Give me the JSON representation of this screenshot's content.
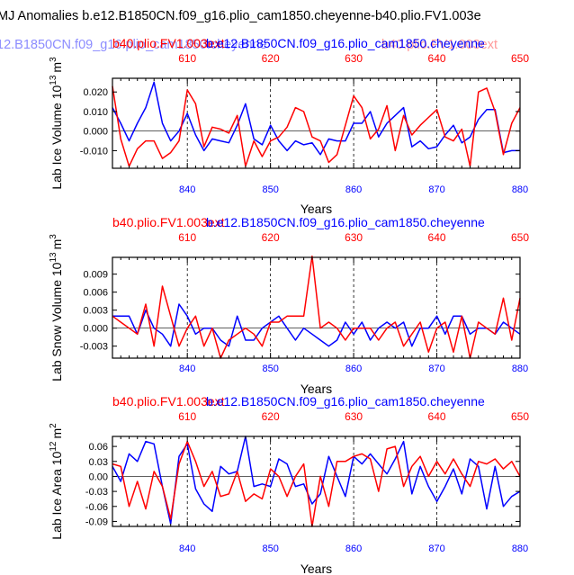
{
  "figure": {
    "title": "MJ Anomalies b.e12.B1850CN.f09_g16.plio_cam1850.cheyenne-b40.plio.FV1.003e",
    "overlay_blue": "12.B1850CN.f09_g16.plio_cam1850.cheyenne",
    "overlay_red": "b40.plio.FV1.003ext"
  },
  "colors": {
    "blue": "#0000ff",
    "red": "#ff0000",
    "black": "#000000",
    "faded_blue": "#8c8cff",
    "faded_red": "#ff9a9a"
  },
  "chart_data": [
    {
      "type": "line",
      "name": "lab-ice-volume",
      "title_red": "b40.plio.FV1.003ext",
      "title_blue": "b.e12.B1850CN.f09_g16.plio_cam1850.cheyenne",
      "ylabel": "Lab Ice Volume 10",
      "ylabel_exp": "13",
      "ylabel_unit": "m",
      "ylabel_unit_exp": "3",
      "xlabel": "Years",
      "xlim": [
        831,
        880
      ],
      "top_xlim": [
        601,
        650
      ],
      "ylim": [
        -0.019,
        0.027
      ],
      "yticks": [
        -0.01,
        0.0,
        0.01,
        0.02
      ],
      "ytick_labels": [
        "-0.010",
        "0.000",
        "0.010",
        "0.020"
      ],
      "xticks": [
        840,
        850,
        860,
        870,
        880
      ],
      "top_xticks": [
        610,
        620,
        630,
        640,
        650
      ],
      "gridlines_x": [
        840,
        850,
        860,
        870
      ],
      "series": [
        {
          "name": "b.e12.B1850CN.f09_g16.plio_cam1850.cheyenne",
          "color": "blue",
          "axis": "bottom",
          "x": [
            831,
            832,
            833,
            834,
            835,
            836,
            837,
            838,
            839,
            840,
            841,
            842,
            843,
            844,
            845,
            846,
            847,
            848,
            849,
            850,
            851,
            852,
            853,
            854,
            855,
            856,
            857,
            858,
            859,
            860,
            861,
            862,
            863,
            864,
            865,
            866,
            867,
            868,
            869,
            870,
            871,
            872,
            873,
            874,
            875,
            876,
            877,
            878,
            879,
            880
          ],
          "values": [
            0.012,
            0.004,
            -0.005,
            0.004,
            0.012,
            0.025,
            0.004,
            -0.005,
            0.0,
            0.009,
            -0.002,
            -0.01,
            -0.004,
            -0.005,
            -0.006,
            0.003,
            0.014,
            -0.004,
            -0.007,
            0.003,
            -0.005,
            -0.01,
            -0.005,
            -0.007,
            -0.006,
            -0.012,
            -0.004,
            -0.005,
            -0.005,
            0.004,
            0.004,
            0.01,
            -0.003,
            0.004,
            0.008,
            0.012,
            -0.008,
            -0.005,
            -0.009,
            -0.008,
            -0.002,
            0.003,
            -0.006,
            -0.003,
            0.006,
            0.011,
            0.011,
            -0.011,
            -0.01,
            -0.01
          ]
        },
        {
          "name": "b40.plio.FV1.003ext",
          "color": "red",
          "axis": "top",
          "x": [
            601,
            602,
            603,
            604,
            605,
            606,
            607,
            608,
            609,
            610,
            611,
            612,
            613,
            614,
            615,
            616,
            617,
            618,
            619,
            620,
            621,
            622,
            623,
            624,
            625,
            626,
            627,
            628,
            629,
            630,
            631,
            632,
            633,
            634,
            635,
            636,
            637,
            638,
            639,
            640,
            641,
            642,
            643,
            644,
            645,
            646,
            647,
            648,
            649,
            650
          ],
          "values": [
            0.023,
            -0.004,
            -0.018,
            -0.009,
            -0.005,
            -0.005,
            -0.014,
            -0.011,
            -0.005,
            0.021,
            0.014,
            -0.008,
            0.002,
            0.001,
            -0.001,
            0.008,
            -0.018,
            -0.005,
            -0.013,
            -0.005,
            -0.003,
            0.002,
            0.012,
            0.01,
            -0.003,
            -0.005,
            -0.016,
            -0.012,
            0.003,
            0.018,
            0.012,
            -0.004,
            0.001,
            0.013,
            -0.01,
            0.008,
            -0.002,
            0.003,
            0.007,
            0.011,
            -0.003,
            -0.005,
            0.001,
            -0.018,
            0.02,
            0.022,
            0.01,
            -0.012,
            0.004,
            0.012
          ]
        }
      ]
    },
    {
      "type": "line",
      "name": "lab-snow-volume",
      "title_red": "b40.plio.FV1.003ext",
      "title_blue": "b.e12.B1850CN.f09_g16.plio_cam1850.cheyenne",
      "ylabel": "Lab Snow Volume 10",
      "ylabel_exp": "13",
      "ylabel_unit": "m",
      "ylabel_unit_exp": "3",
      "xlabel": "Years",
      "xlim": [
        831,
        880
      ],
      "top_xlim": [
        601,
        650
      ],
      "ylim": [
        -0.005,
        0.0118
      ],
      "yticks": [
        -0.003,
        0.0,
        0.003,
        0.006,
        0.009
      ],
      "ytick_labels": [
        "-0.003",
        "0.000",
        "0.003",
        "0.006",
        "0.009"
      ],
      "xticks": [
        840,
        850,
        860,
        870,
        880
      ],
      "top_xticks": [
        610,
        620,
        630,
        640,
        650
      ],
      "gridlines_x": [
        840,
        850,
        860,
        870
      ],
      "series": [
        {
          "name": "b.e12.B1850CN.f09_g16.plio_cam1850.cheyenne",
          "color": "blue",
          "axis": "bottom",
          "x": [
            831,
            832,
            833,
            834,
            835,
            836,
            837,
            838,
            839,
            840,
            841,
            842,
            843,
            844,
            845,
            846,
            847,
            848,
            849,
            850,
            851,
            852,
            853,
            854,
            855,
            856,
            857,
            858,
            859,
            860,
            861,
            862,
            863,
            864,
            865,
            866,
            867,
            868,
            869,
            870,
            871,
            872,
            873,
            874,
            875,
            876,
            877,
            878,
            879,
            880
          ],
          "values": [
            0.002,
            0.002,
            0.002,
            -0.001,
            0.003,
            0.0,
            -0.001,
            -0.003,
            0.004,
            0.002,
            -0.001,
            0.0,
            0.0,
            -0.002,
            -0.003,
            0.002,
            -0.002,
            -0.002,
            0.0,
            0.001,
            0.002,
            0.0,
            -0.002,
            0.0,
            -0.001,
            -0.002,
            -0.003,
            -0.002,
            0.001,
            -0.001,
            0.001,
            -0.002,
            0.0,
            0.001,
            0.0,
            0.001,
            -0.003,
            0.0,
            0.0,
            0.002,
            -0.001,
            0.002,
            0.002,
            -0.001,
            0.0,
            0.0,
            -0.001,
            0.001,
            0.0,
            -0.001
          ]
        },
        {
          "name": "b40.plio.FV1.003ext",
          "color": "red",
          "axis": "top",
          "x": [
            601,
            602,
            603,
            604,
            605,
            606,
            607,
            608,
            609,
            610,
            611,
            612,
            613,
            614,
            615,
            616,
            617,
            618,
            619,
            620,
            621,
            622,
            623,
            624,
            625,
            626,
            627,
            628,
            629,
            630,
            631,
            632,
            633,
            634,
            635,
            636,
            637,
            638,
            639,
            640,
            641,
            642,
            643,
            644,
            645,
            646,
            647,
            648,
            649,
            650
          ],
          "values": [
            0.002,
            0.001,
            0.0,
            -0.001,
            0.004,
            -0.003,
            0.007,
            0.002,
            -0.003,
            0.0,
            0.002,
            -0.003,
            0.0,
            -0.005,
            -0.002,
            -0.001,
            0.0,
            -0.001,
            -0.003,
            0.001,
            0.001,
            0.002,
            0.002,
            0.002,
            0.012,
            0.0,
            0.001,
            0.0,
            -0.002,
            0.0,
            0.0,
            0.0,
            -0.002,
            0.0,
            0.001,
            -0.003,
            -0.001,
            0.001,
            -0.004,
            0.0,
            0.001,
            -0.004,
            0.002,
            -0.005,
            0.001,
            0.0,
            -0.001,
            0.005,
            -0.002,
            0.005
          ]
        }
      ]
    },
    {
      "type": "line",
      "name": "lab-ice-area",
      "title_red": "b40.plio.FV1.003ext",
      "title_blue": "b.e12.B1850CN.f09_g16.plio_cam1850.cheyenne",
      "ylabel": "Lab Ice Area 10",
      "ylabel_exp": "12",
      "ylabel_unit": "m",
      "ylabel_unit_exp": "2",
      "xlabel": "Years",
      "xlim": [
        831,
        880
      ],
      "top_xlim": [
        601,
        650
      ],
      "ylim": [
        -0.1,
        0.08
      ],
      "yticks": [
        -0.09,
        -0.06,
        -0.03,
        0.0,
        0.03,
        0.06
      ],
      "ytick_labels": [
        "-0.09",
        "-0.06",
        "-0.03",
        "0.00",
        "0.03",
        "0.06"
      ],
      "xticks": [
        840,
        850,
        860,
        870,
        880
      ],
      "top_xticks": [
        610,
        620,
        630,
        640,
        650
      ],
      "gridlines_x": [
        840,
        850,
        860,
        870
      ],
      "series": [
        {
          "name": "b.e12.B1850CN.f09_g16.plio_cam1850.cheyenne",
          "color": "blue",
          "axis": "bottom",
          "x": [
            831,
            832,
            833,
            834,
            835,
            836,
            837,
            838,
            839,
            840,
            841,
            842,
            843,
            844,
            845,
            846,
            847,
            848,
            849,
            850,
            851,
            852,
            853,
            854,
            855,
            856,
            857,
            858,
            859,
            860,
            861,
            862,
            863,
            864,
            865,
            866,
            867,
            868,
            869,
            870,
            871,
            872,
            873,
            874,
            875,
            876,
            877,
            878,
            879,
            880
          ],
          "values": [
            0.02,
            -0.01,
            0.045,
            0.03,
            0.07,
            0.065,
            -0.02,
            -0.095,
            0.04,
            0.065,
            -0.025,
            -0.055,
            -0.07,
            0.02,
            0.005,
            0.01,
            0.08,
            -0.02,
            -0.015,
            -0.02,
            0.035,
            0.025,
            -0.02,
            -0.015,
            -0.055,
            -0.035,
            0.04,
            0.0,
            -0.04,
            0.04,
            0.025,
            0.045,
            0.025,
            0.005,
            0.035,
            0.07,
            -0.035,
            0.02,
            -0.02,
            -0.05,
            -0.02,
            0.015,
            -0.035,
            0.035,
            0.02,
            -0.065,
            0.02,
            -0.06,
            -0.04,
            -0.03
          ]
        },
        {
          "name": "b40.plio.FV1.003ext",
          "color": "red",
          "axis": "top",
          "x": [
            601,
            602,
            603,
            604,
            605,
            606,
            607,
            608,
            609,
            610,
            611,
            612,
            613,
            614,
            615,
            616,
            617,
            618,
            619,
            620,
            621,
            622,
            623,
            624,
            625,
            626,
            627,
            628,
            629,
            630,
            631,
            632,
            633,
            634,
            635,
            636,
            637,
            638,
            639,
            640,
            641,
            642,
            643,
            644,
            645,
            646,
            647,
            648,
            649,
            650
          ],
          "values": [
            0.025,
            0.02,
            -0.06,
            -0.01,
            -0.065,
            0.01,
            -0.02,
            -0.085,
            0.025,
            0.07,
            0.03,
            -0.02,
            0.01,
            -0.04,
            -0.035,
            0.01,
            -0.05,
            -0.035,
            -0.045,
            0.015,
            0.0,
            -0.04,
            0.0,
            0.025,
            -0.1,
            0.0,
            -0.06,
            0.03,
            0.03,
            0.04,
            0.045,
            0.035,
            -0.03,
            0.055,
            0.06,
            -0.02,
            0.02,
            0.04,
            0.0,
            0.03,
            0.005,
            0.035,
            0.005,
            -0.02,
            0.03,
            0.025,
            0.035,
            0.015,
            0.03,
            0.0
          ]
        }
      ]
    }
  ]
}
